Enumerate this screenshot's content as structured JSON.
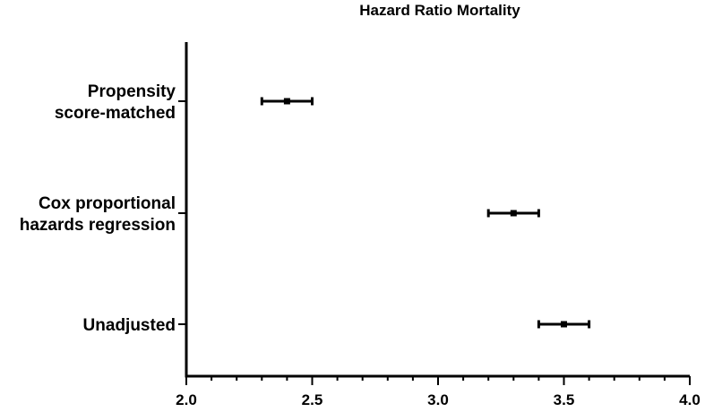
{
  "chart_data": {
    "type": "forest",
    "title": "Hazard Ratio Mortality",
    "xlabel": "",
    "ylabel": "",
    "xlim": [
      2.0,
      4.0
    ],
    "x_ticks": [
      "2.0",
      "2.5",
      "3.0",
      "3.5",
      "4.0"
    ],
    "x_minor_step": 0.1,
    "grid": false,
    "rows": [
      {
        "label_lines": [
          "Propensity",
          "score-matched"
        ],
        "estimate": 2.4,
        "ci_low": 2.3,
        "ci_high": 2.5
      },
      {
        "label_lines": [
          "Cox proportional",
          "hazards regression"
        ],
        "estimate": 3.3,
        "ci_low": 3.2,
        "ci_high": 3.4
      },
      {
        "label_lines": [
          "Unadjusted"
        ],
        "estimate": 3.5,
        "ci_low": 3.4,
        "ci_high": 3.6
      }
    ],
    "colors": {
      "marks": "#000000",
      "axis": "#000000"
    }
  }
}
